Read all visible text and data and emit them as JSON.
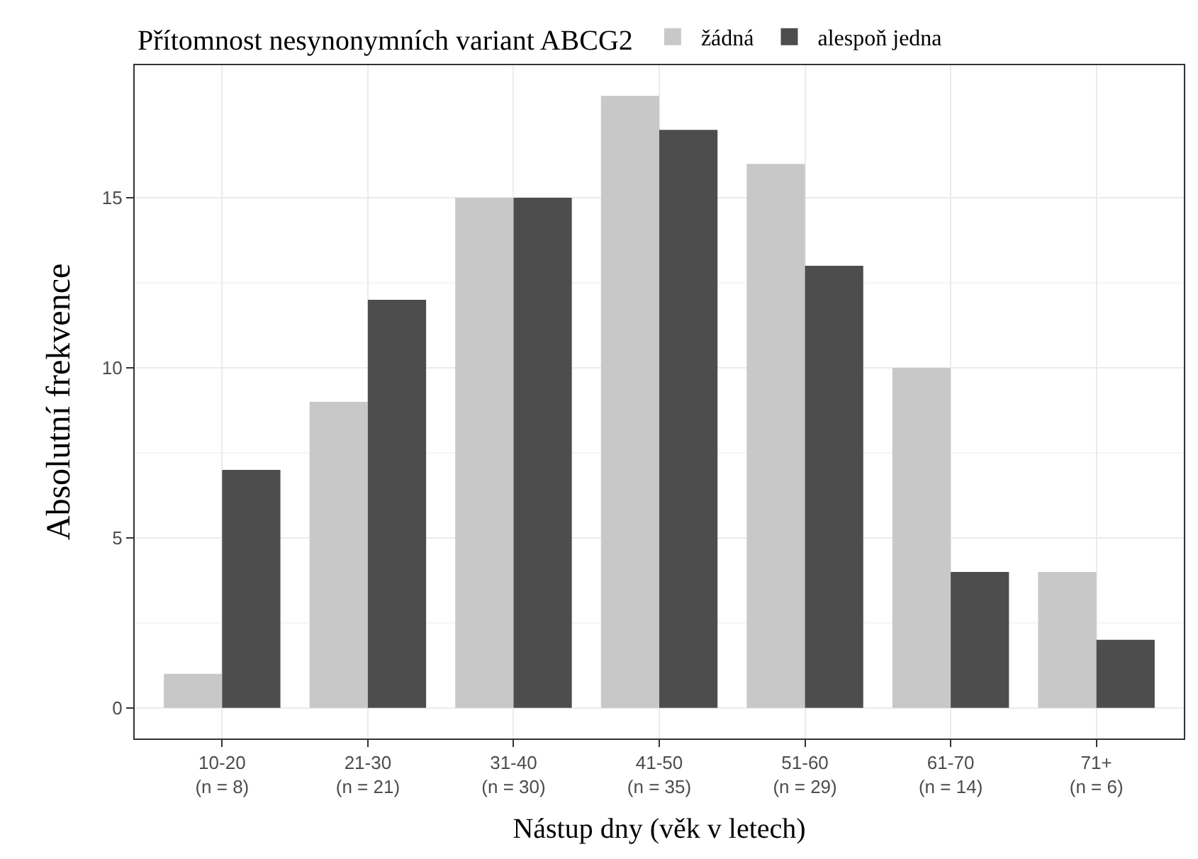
{
  "chart_data": {
    "type": "bar",
    "xlabel": "Nástup dny (věk v letech)",
    "ylabel": "Absolutní frekvence",
    "legend_title": "Přítomnost nesynonymních variant ABCG2",
    "legend": "top",
    "categories": [
      "10-20\n(n = 8)",
      "21-30\n(n = 21)",
      "31-40\n(n = 30)",
      "41-50\n(n = 35)",
      "51-60\n(n = 29)",
      "61-70\n(n = 14)",
      "71+\n(n = 6)"
    ],
    "series": [
      {
        "name": "žádná",
        "color": "#c8c8c8",
        "values": [
          1,
          9,
          15,
          18,
          16,
          10,
          4
        ]
      },
      {
        "name": "alespoň jedna",
        "color": "#4d4d4d",
        "values": [
          7,
          12,
          15,
          17,
          13,
          4,
          2
        ]
      }
    ],
    "ylim": [
      -0.9,
      18.9
    ],
    "yticks": [
      0,
      5,
      10,
      15
    ],
    "grid": true
  }
}
